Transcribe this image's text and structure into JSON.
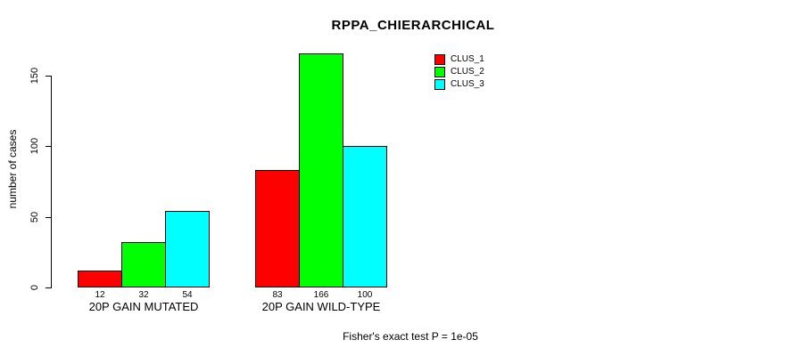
{
  "chart_data": {
    "type": "bar",
    "title": "RPPA_CHIERARCHICAL",
    "xlabel": "",
    "ylabel": "number of cases",
    "categories": [
      "20P GAIN MUTATED",
      "20P GAIN WILD-TYPE"
    ],
    "series": [
      {
        "name": "CLUS_1",
        "color": "#ff0000",
        "values": [
          12,
          83
        ]
      },
      {
        "name": "CLUS_2",
        "color": "#00ff00",
        "values": [
          32,
          166
        ]
      },
      {
        "name": "CLUS_3",
        "color": "#00ffff",
        "values": [
          54,
          100
        ]
      }
    ],
    "bar_value_labels": [
      [
        12,
        32,
        54
      ],
      [
        83,
        166,
        100
      ]
    ],
    "yticks": [
      0,
      50,
      100,
      150
    ],
    "ylim": [
      0,
      166
    ],
    "grid": false,
    "legend_position": "upper-right-of-plot",
    "bar_border_color": "#000000",
    "axis_color": "#000000",
    "background_color": "#ffffff",
    "footnote": "Fisher's exact test P = 1e-05"
  }
}
